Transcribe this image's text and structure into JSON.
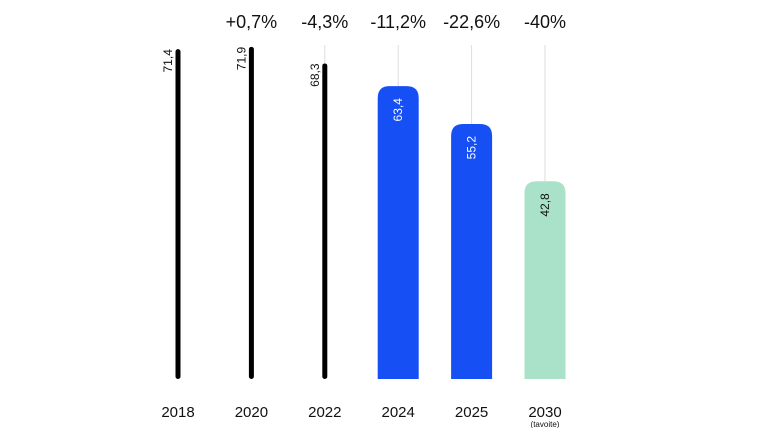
{
  "chart_data": {
    "type": "bar",
    "categories": [
      "2018",
      "2020",
      "2022",
      "2024",
      "2025",
      "2030"
    ],
    "category_notes": [
      "",
      "",
      "",
      "",
      "",
      "(tavoite)"
    ],
    "values": [
      71.4,
      71.9,
      68.3,
      63.4,
      55.2,
      42.8
    ],
    "value_labels": [
      "71,4",
      "71,9",
      "68,3",
      "63,4",
      "55,2",
      "42,8"
    ],
    "change_labels": [
      "",
      "+0,7%",
      "-4,3%",
      "-11,2%",
      "-22,6%",
      "-40%"
    ],
    "bar_styles": [
      "thin",
      "thin",
      "thin",
      "wide",
      "wide",
      "wide"
    ],
    "colors": [
      "#000000",
      "#000000",
      "#000000",
      "#1650f5",
      "#1650f5",
      "#a9e2c9"
    ],
    "label_colors": [
      "#111111",
      "#111111",
      "#111111",
      "#ffffff",
      "#ffffff",
      "#111111"
    ],
    "guide_color": "#dddddd",
    "title": "",
    "xlabel": "",
    "ylabel": "",
    "ylim": [
      0,
      72
    ],
    "grid": false,
    "legend": "none"
  }
}
